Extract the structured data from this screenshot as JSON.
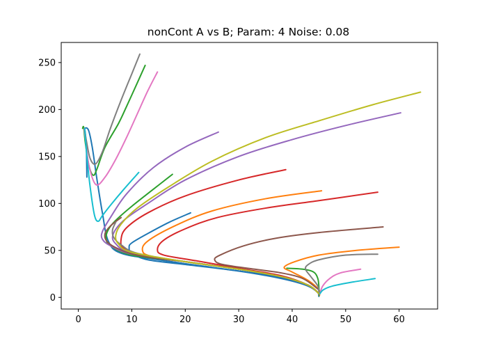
{
  "chart_data": {
    "type": "line",
    "title": "nonCont A vs B; Param: 4 Noise: 0.08",
    "xlabel": "",
    "ylabel": "",
    "xlim": [
      -3.2,
      67.2
    ],
    "ylim": [
      -12.4,
      271.4
    ],
    "xticks": [
      0,
      10,
      20,
      30,
      40,
      50,
      60
    ],
    "yticks": [
      0,
      50,
      100,
      150,
      200,
      250
    ],
    "grid": false,
    "legend": "none",
    "colors": [
      "#1f77b4",
      "#ff7f0e",
      "#2ca02c",
      "#d62728",
      "#9467bd",
      "#8c564b",
      "#e377c2",
      "#7f7f7f",
      "#bcbd22",
      "#17becf"
    ],
    "series": [
      {
        "color": "#1f77b4",
        "points": [
          [
            1.6,
            128
          ],
          [
            1.5,
            160
          ],
          [
            1.3,
            175
          ],
          [
            1.2,
            180
          ],
          [
            1.9,
            178
          ],
          [
            2.6,
            160
          ],
          [
            3.5,
            125
          ],
          [
            4.5,
            90
          ],
          [
            5.6,
            60
          ],
          [
            8,
            47
          ],
          [
            15,
            40
          ],
          [
            25,
            32
          ],
          [
            35,
            24
          ],
          [
            40,
            18
          ],
          [
            43,
            12
          ],
          [
            44.7,
            6
          ],
          [
            45,
            1
          ]
        ]
      },
      {
        "color": "#1f77b4",
        "points": [
          [
            21,
            90
          ],
          [
            17,
            80
          ],
          [
            13,
            68
          ],
          [
            10,
            58
          ],
          [
            9.5,
            53
          ],
          [
            10,
            47
          ],
          [
            13,
            40
          ],
          [
            20,
            35
          ],
          [
            30,
            28
          ],
          [
            38,
            20
          ],
          [
            43,
            12
          ],
          [
            45,
            4
          ]
        ]
      },
      {
        "color": "#ff7f0e",
        "points": [
          [
            45.5,
            113.5
          ],
          [
            35,
            105
          ],
          [
            25,
            92
          ],
          [
            18,
            76
          ],
          [
            13,
            60
          ],
          [
            12,
            50
          ],
          [
            13.5,
            44
          ],
          [
            20,
            38
          ],
          [
            30,
            30
          ],
          [
            38,
            22
          ],
          [
            43,
            13
          ],
          [
            45,
            4
          ]
        ]
      },
      {
        "color": "#ff7f0e",
        "points": [
          [
            60,
            53.5
          ],
          [
            52,
            50
          ],
          [
            45,
            45
          ],
          [
            40.5,
            38
          ],
          [
            38.5,
            32
          ],
          [
            40,
            27
          ],
          [
            43,
            18
          ],
          [
            45,
            8
          ],
          [
            45.1,
            2
          ]
        ]
      },
      {
        "color": "#2ca02c",
        "points": [
          [
            12.5,
            247
          ],
          [
            11,
            228
          ],
          [
            9,
            203
          ],
          [
            7.5,
            185
          ],
          [
            5,
            160
          ],
          [
            3.5,
            137
          ],
          [
            2.8,
            130
          ],
          [
            2,
            140
          ],
          [
            1.3,
            165
          ],
          [
            1,
            181
          ],
          [
            0.8,
            180
          ]
        ]
      },
      {
        "color": "#2ca02c",
        "points": [
          [
            17.6,
            131
          ],
          [
            14,
            115
          ],
          [
            10,
            97
          ],
          [
            7,
            82
          ],
          [
            5.6,
            72
          ],
          [
            5.2,
            63
          ],
          [
            6,
            55
          ],
          [
            10,
            45
          ],
          [
            20,
            38
          ],
          [
            30,
            30
          ],
          [
            38,
            22
          ],
          [
            43,
            13
          ],
          [
            45,
            4
          ]
        ]
      },
      {
        "color": "#2ca02c",
        "points": [
          [
            39,
            31
          ],
          [
            42,
            30
          ],
          [
            44,
            27
          ],
          [
            44.8,
            20
          ],
          [
            45,
            10
          ],
          [
            45,
            2
          ]
        ]
      },
      {
        "color": "#d62728",
        "points": [
          [
            38.8,
            136
          ],
          [
            30,
            125
          ],
          [
            20,
            108
          ],
          [
            13,
            90
          ],
          [
            9,
            74
          ],
          [
            8,
            62
          ],
          [
            8.5,
            52
          ],
          [
            12,
            44
          ],
          [
            20,
            38
          ],
          [
            30,
            30
          ],
          [
            38,
            22
          ],
          [
            43,
            13
          ],
          [
            45,
            4
          ]
        ]
      },
      {
        "color": "#d62728",
        "points": [
          [
            56,
            112
          ],
          [
            45,
            103
          ],
          [
            35,
            95
          ],
          [
            26,
            85
          ],
          [
            20,
            73
          ],
          [
            16,
            61
          ],
          [
            14.8,
            51
          ],
          [
            16,
            45
          ],
          [
            22,
            39
          ],
          [
            30,
            31
          ],
          [
            38,
            23
          ],
          [
            43,
            13
          ],
          [
            45,
            4
          ]
        ]
      },
      {
        "color": "#9467bd",
        "points": [
          [
            26.2,
            176
          ],
          [
            20,
            160
          ],
          [
            14,
            138
          ],
          [
            9,
            110
          ],
          [
            6,
            85
          ],
          [
            4.5,
            70
          ],
          [
            4.5,
            62
          ],
          [
            6,
            55
          ],
          [
            10,
            46
          ],
          [
            20,
            38
          ],
          [
            30,
            30
          ],
          [
            38,
            22
          ],
          [
            43,
            13
          ],
          [
            45,
            4
          ]
        ]
      },
      {
        "color": "#9467bd",
        "points": [
          [
            60.3,
            196.5
          ],
          [
            50,
            183
          ],
          [
            40,
            168
          ],
          [
            30,
            150
          ],
          [
            20,
            125
          ],
          [
            13,
            100
          ],
          [
            8.5,
            82
          ],
          [
            6.5,
            67
          ],
          [
            7,
            57
          ],
          [
            10,
            47
          ],
          [
            20,
            38
          ],
          [
            30,
            30
          ],
          [
            38,
            22
          ],
          [
            43,
            13
          ],
          [
            45,
            4
          ]
        ]
      },
      {
        "color": "#8c564b",
        "points": [
          [
            57,
            75
          ],
          [
            45,
            69
          ],
          [
            37,
            63
          ],
          [
            31,
            55
          ],
          [
            26.5,
            45
          ],
          [
            25.5,
            40
          ],
          [
            27,
            35
          ],
          [
            33,
            30
          ],
          [
            38,
            26
          ],
          [
            42,
            20
          ],
          [
            45,
            8
          ]
        ]
      },
      {
        "color": "#8c564b",
        "points": [
          [
            8,
            85
          ],
          [
            6,
            76
          ],
          [
            5,
            68
          ],
          [
            5.3,
            60
          ],
          [
            7,
            53
          ],
          [
            11,
            45
          ],
          [
            20,
            38
          ],
          [
            30,
            30
          ],
          [
            38,
            22
          ],
          [
            43,
            13
          ],
          [
            45,
            4
          ]
        ]
      },
      {
        "color": "#e377c2",
        "points": [
          [
            14.8,
            240
          ],
          [
            13,
            220
          ],
          [
            11,
            195
          ],
          [
            9,
            170
          ],
          [
            7,
            147
          ],
          [
            5,
            128
          ],
          [
            3.3,
            120
          ],
          [
            2,
            140
          ],
          [
            1.3,
            170
          ],
          [
            1.1,
            180
          ]
        ]
      },
      {
        "color": "#e377c2",
        "points": [
          [
            52.8,
            30
          ],
          [
            49,
            26
          ],
          [
            47,
            20
          ],
          [
            45.7,
            12
          ],
          [
            45.2,
            4
          ]
        ]
      },
      {
        "color": "#7f7f7f",
        "points": [
          [
            11.5,
            259
          ],
          [
            10,
            238
          ],
          [
            8,
            210
          ],
          [
            6,
            180
          ],
          [
            4.5,
            155
          ],
          [
            3.2,
            142
          ],
          [
            2.2,
            148
          ],
          [
            1.5,
            167
          ],
          [
            1.2,
            178
          ],
          [
            1.1,
            180
          ]
        ]
      },
      {
        "color": "#7f7f7f",
        "points": [
          [
            56,
            46
          ],
          [
            50,
            45
          ],
          [
            45,
            40
          ],
          [
            43,
            35
          ],
          [
            42.5,
            30
          ],
          [
            43.5,
            22
          ],
          [
            44.8,
            12
          ],
          [
            45,
            3
          ]
        ]
      },
      {
        "color": "#7f7f7f",
        "points": [
          [
            7,
            80
          ],
          [
            6.4,
            72
          ],
          [
            6.6,
            64
          ],
          [
            8,
            56
          ],
          [
            11,
            47
          ],
          [
            20,
            38
          ],
          [
            30,
            30
          ],
          [
            38,
            22
          ],
          [
            43,
            13
          ],
          [
            45,
            4
          ]
        ]
      },
      {
        "color": "#bcbd22",
        "points": [
          [
            64,
            218.5
          ],
          [
            55,
            205
          ],
          [
            45,
            188
          ],
          [
            35,
            170
          ],
          [
            25,
            145
          ],
          [
            17,
            118
          ],
          [
            11,
            95
          ],
          [
            8,
            78
          ],
          [
            7,
            66
          ],
          [
            7.5,
            57
          ],
          [
            10,
            48
          ],
          [
            20,
            38
          ],
          [
            30,
            30
          ],
          [
            38,
            22
          ],
          [
            43,
            13
          ],
          [
            45,
            4
          ]
        ]
      },
      {
        "color": "#17becf",
        "points": [
          [
            11.3,
            133
          ],
          [
            8.5,
            115
          ],
          [
            6,
            98
          ],
          [
            4.5,
            87
          ],
          [
            3.7,
            81
          ],
          [
            3,
            88
          ],
          [
            2.2,
            118
          ],
          [
            1.6,
            150
          ],
          [
            1.3,
            172
          ],
          [
            1.2,
            180
          ]
        ]
      },
      {
        "color": "#17becf",
        "points": [
          [
            55.5,
            20
          ],
          [
            51,
            16
          ],
          [
            47.5,
            12
          ],
          [
            45.8,
            8
          ],
          [
            45.2,
            4
          ]
        ]
      }
    ]
  }
}
